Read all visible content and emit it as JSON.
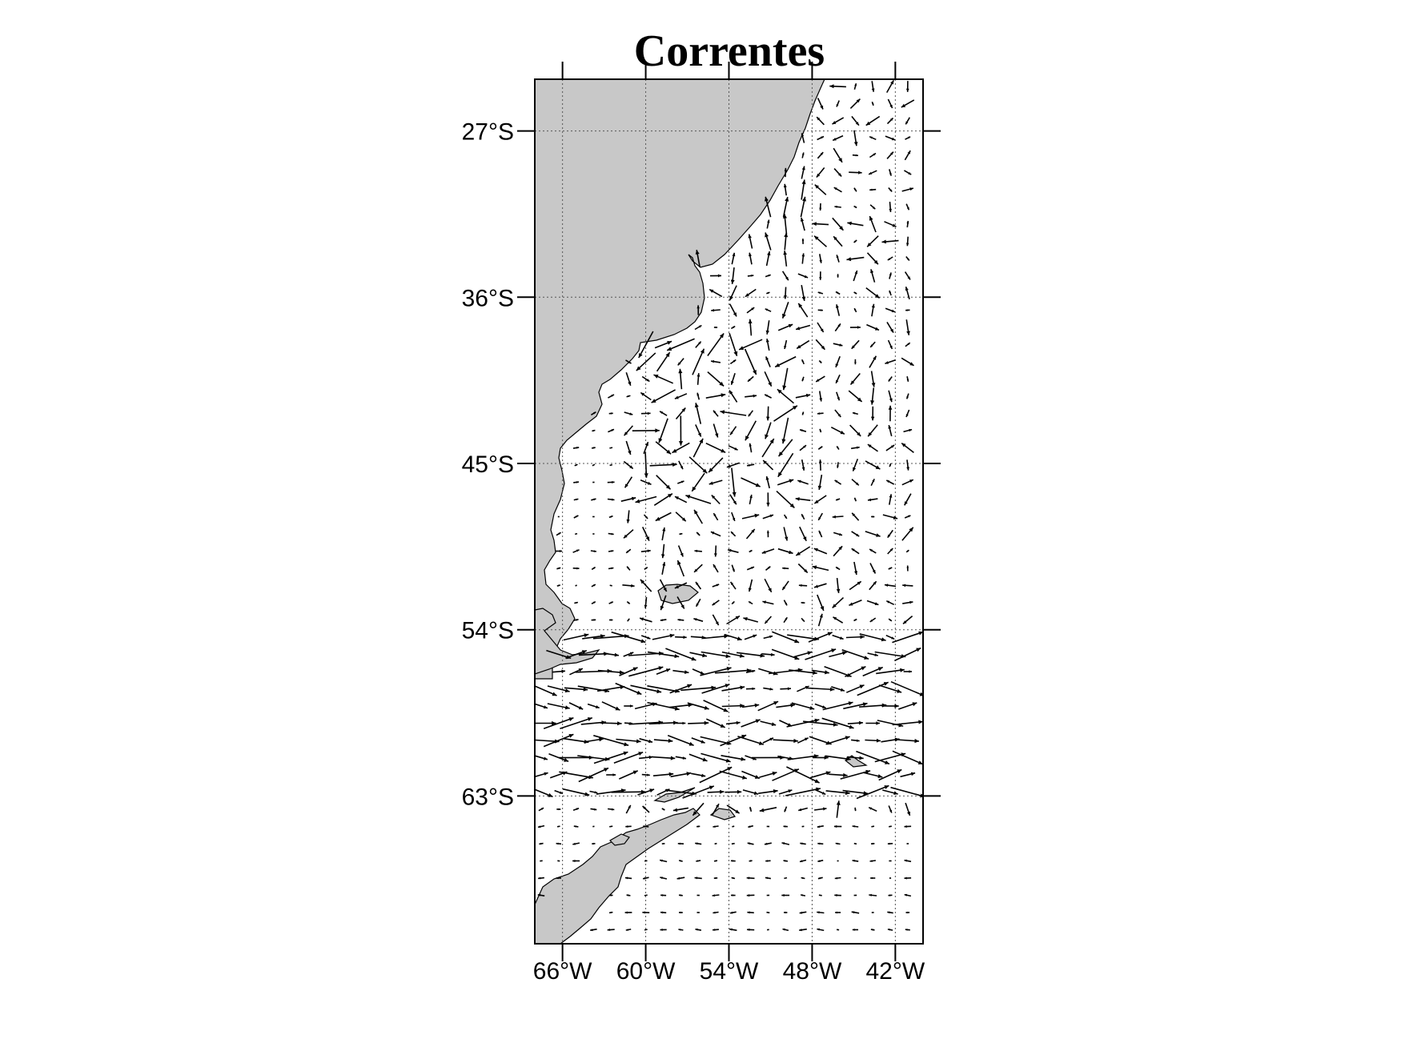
{
  "title": "Correntes",
  "map": {
    "extent": {
      "lon_min": -68,
      "lon_max": -40,
      "lat_min": -71,
      "lat_max": -24.2
    },
    "lat_ticks": [
      {
        "value": -27,
        "label": "27°S"
      },
      {
        "value": -36,
        "label": "36°S"
      },
      {
        "value": -45,
        "label": "45°S"
      },
      {
        "value": -54,
        "label": "54°S"
      },
      {
        "value": -63,
        "label": "63°S"
      }
    ],
    "lon_ticks": [
      {
        "value": -66,
        "label": "66°W"
      },
      {
        "value": -60,
        "label": "60°W"
      },
      {
        "value": -54,
        "label": "54°W"
      },
      {
        "value": -48,
        "label": "48°W"
      },
      {
        "value": -42,
        "label": "42°W"
      }
    ],
    "grid": true,
    "land_color": "#c8c8c8",
    "vector_color": "#000000",
    "layers": [
      "land-south-america",
      "land-falklands",
      "land-south-shetland",
      "land-antarctic-peninsula",
      "current-vectors"
    ]
  }
}
